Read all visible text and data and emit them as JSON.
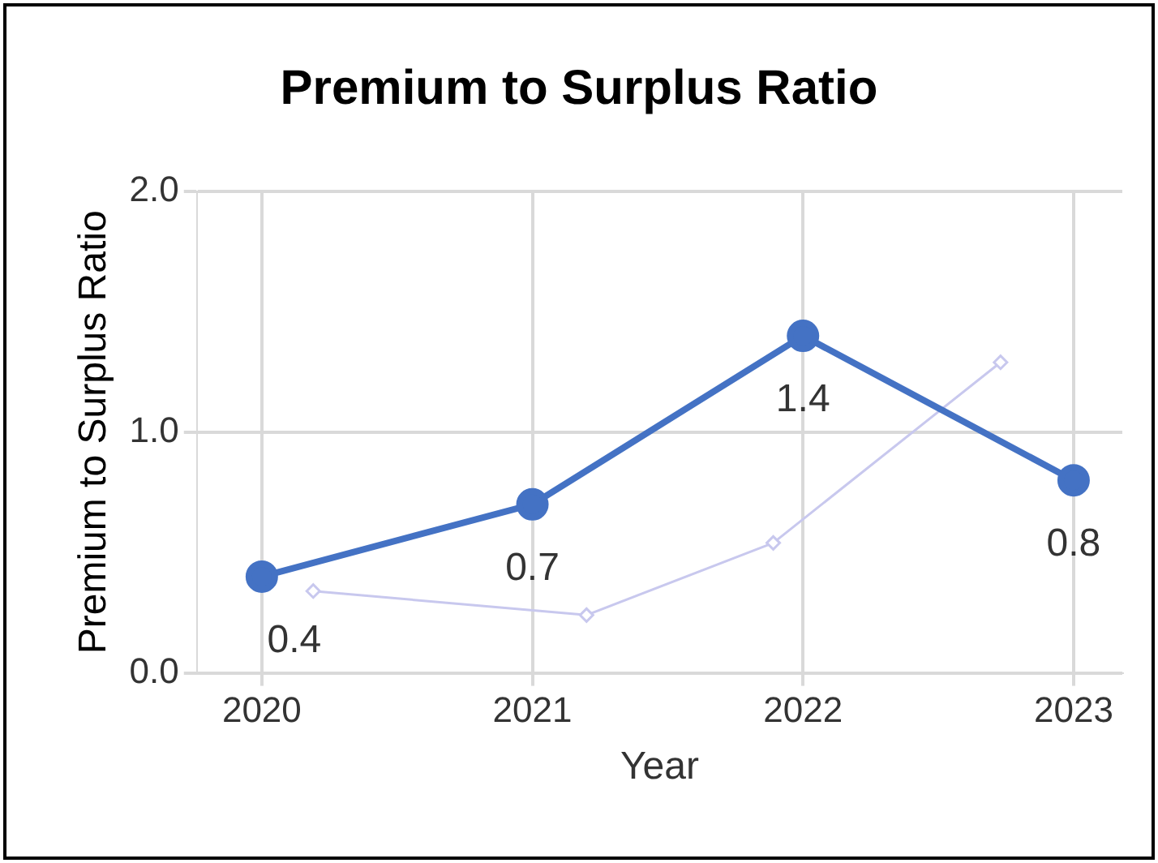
{
  "chart_data": {
    "type": "line",
    "title": "Premium to Surplus Ratio",
    "xlabel": "Year",
    "ylabel": "Premium to Surplus Ratio",
    "x": [
      2020,
      2021,
      2022,
      2023
    ],
    "series": [
      {
        "color": "#4472c4",
        "values": [
          0.4,
          0.7,
          1.4,
          0.8
        ],
        "value_labels": [
          "0.4",
          "0.7",
          "1.4",
          "0.8"
        ],
        "marker": "circle"
      },
      {
        "color": "#c8c8ee",
        "x": [
          2020.19,
          2021.2,
          2021.89,
          2022.73
        ],
        "values": [
          0.34,
          0.24,
          0.54,
          1.29
        ],
        "marker": "diamond"
      }
    ],
    "xlim": [
      2019.76,
      2023.18
    ],
    "xticks": [
      2020,
      2021,
      2022,
      2023
    ],
    "ylim": [
      0,
      2
    ],
    "yticks": [
      {
        "value": 0,
        "label": "0.0"
      },
      {
        "value": 1,
        "label": "1.0"
      },
      {
        "value": 2,
        "label": "2.0"
      }
    ],
    "grid": true,
    "legend": false
  }
}
